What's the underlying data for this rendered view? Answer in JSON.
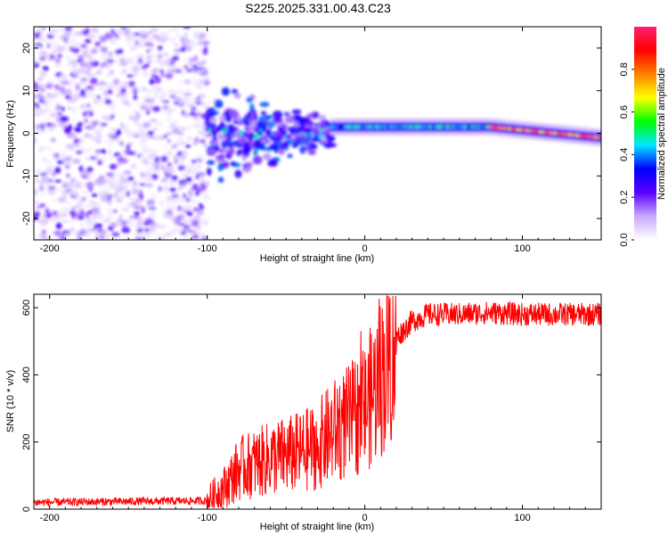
{
  "title": "S225.2025.331.00.43.C23",
  "chart_data": [
    {
      "type": "heatmap",
      "panel": "spectrogram",
      "xlabel": "Height of straight line (km)",
      "ylabel": "Frequency (Hz)",
      "xlim": [
        -210,
        150
      ],
      "ylim": [
        -25,
        25
      ],
      "x_ticks": [
        -200,
        -100,
        0,
        100
      ],
      "y_ticks": [
        -20,
        -10,
        0,
        10,
        20
      ],
      "colorbar": {
        "label": "Normalized spectral amplitude",
        "range": [
          0.0,
          1.0
        ],
        "ticks": [
          0.0,
          0.2,
          0.4,
          0.6,
          0.8
        ],
        "tick_labels": [
          "0.0",
          "0.2",
          "0.4",
          "0.6",
          "0.8"
        ],
        "colormap": [
          "#ffffff",
          "#c8a8ff",
          "#5a00ff",
          "#0000ff",
          "#00e6ff",
          "#00ff00",
          "#ffff00",
          "#ff8000",
          "#ff0000",
          "#ff1f6e"
        ]
      },
      "regions": [
        {
          "x_range": [
            -210,
            -100
          ],
          "description": "noise",
          "amplitude": [
            0.02,
            0.25
          ]
        },
        {
          "x_range": [
            -100,
            -20
          ],
          "center_freq_hz": 0,
          "freq_spread_hz": 12,
          "amplitude": [
            0.1,
            0.4
          ]
        },
        {
          "x_range": [
            -20,
            80
          ],
          "center_freq_hz": 1.5,
          "amplitude": [
            0.3,
            0.55
          ]
        },
        {
          "x_range": [
            80,
            150
          ],
          "center_freq_hz": [
            1.5,
            -1
          ],
          "amplitude": [
            0.6,
            0.98
          ]
        }
      ]
    },
    {
      "type": "line",
      "panel": "snr",
      "xlabel": "Height of straight line (km)",
      "ylabel": "SNR (10 * v/v)",
      "xlim": [
        -210,
        150
      ],
      "ylim": [
        0,
        640
      ],
      "x_ticks": [
        -200,
        -100,
        0,
        100
      ],
      "y_ticks": [
        0,
        200,
        400,
        600
      ],
      "color": "#ff0000",
      "profile": {
        "x": [
          -210,
          -100,
          -88,
          -80,
          -60,
          -40,
          -30,
          -20,
          -10,
          0,
          10,
          20,
          30,
          40,
          60,
          80,
          100,
          120,
          150
        ],
        "y": [
          20,
          25,
          70,
          120,
          150,
          170,
          190,
          230,
          260,
          300,
          390,
          510,
          560,
          580,
          580,
          585,
          580,
          580,
          580
        ]
      }
    }
  ]
}
